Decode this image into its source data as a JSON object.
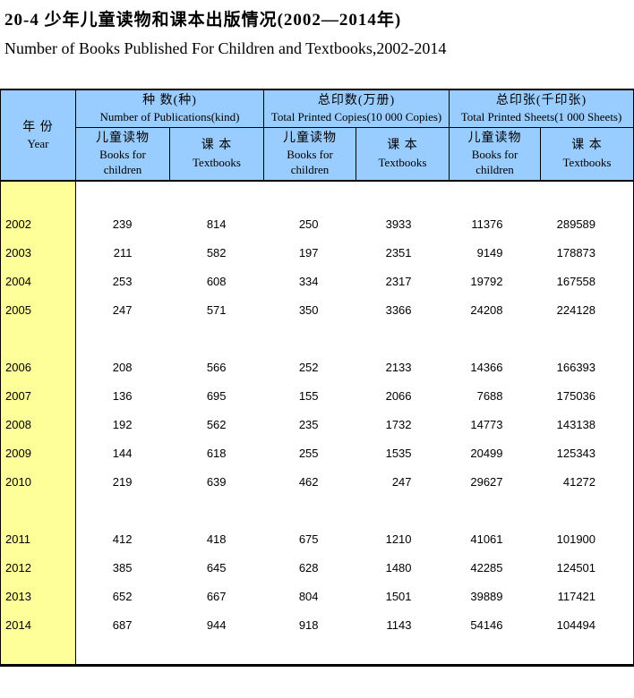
{
  "title": {
    "zh": "20-4  少年儿童读物和课本出版情况(2002—2014年)",
    "en": "Number of Books Published For Children and Textbooks,2002-2014"
  },
  "colors": {
    "header_bg": "#99CCFF",
    "year_column_bg": "#FFFF99",
    "border": "#000000",
    "text": "#000000",
    "body_bg": "#FFFFFF"
  },
  "table": {
    "year_header": {
      "zh": "年 份",
      "en": "Year"
    },
    "groups": [
      {
        "zh": "种 数(种)",
        "en": "Number of Publications(kind)"
      },
      {
        "zh": "总印数(万册)",
        "en": "Total Printed Copies(10 000 Copies)"
      },
      {
        "zh": "总印张(千印张)",
        "en": "Total Printed Sheets(1 000 Sheets)"
      }
    ],
    "subheaders": [
      {
        "zh": "儿童读物",
        "en": "Books for children"
      },
      {
        "zh": "课 本",
        "en": "Textbooks"
      }
    ],
    "rows": [
      {
        "year": "2002",
        "spacer_before": true,
        "values": [
          239,
          814,
          250,
          3933,
          11376,
          289589
        ]
      },
      {
        "year": "2003",
        "spacer_before": false,
        "values": [
          211,
          582,
          197,
          2351,
          9149,
          178873
        ]
      },
      {
        "year": "2004",
        "spacer_before": false,
        "values": [
          253,
          608,
          334,
          2317,
          19792,
          167558
        ]
      },
      {
        "year": "2005",
        "spacer_before": false,
        "values": [
          247,
          571,
          350,
          3366,
          24208,
          224128
        ]
      },
      {
        "year": "2006",
        "spacer_before": true,
        "values": [
          208,
          566,
          252,
          2133,
          14366,
          166393
        ]
      },
      {
        "year": "2007",
        "spacer_before": false,
        "values": [
          136,
          695,
          155,
          2066,
          7688,
          175036
        ]
      },
      {
        "year": "2008",
        "spacer_before": false,
        "values": [
          192,
          562,
          235,
          1732,
          14773,
          143138
        ]
      },
      {
        "year": "2009",
        "spacer_before": false,
        "values": [
          144,
          618,
          255,
          1535,
          20499,
          125343
        ]
      },
      {
        "year": "2010",
        "spacer_before": false,
        "values": [
          219,
          639,
          462,
          247,
          29627,
          41272
        ]
      },
      {
        "year": "2011",
        "spacer_before": true,
        "values": [
          412,
          418,
          675,
          1210,
          41061,
          101900
        ]
      },
      {
        "year": "2012",
        "spacer_before": false,
        "values": [
          385,
          645,
          628,
          1480,
          42285,
          124501
        ]
      },
      {
        "year": "2013",
        "spacer_before": false,
        "values": [
          652,
          667,
          804,
          1501,
          39889,
          117421
        ]
      },
      {
        "year": "2014",
        "spacer_before": false,
        "values": [
          687,
          944,
          918,
          1143,
          54146,
          104494
        ]
      }
    ],
    "trailing_spacer": true
  }
}
